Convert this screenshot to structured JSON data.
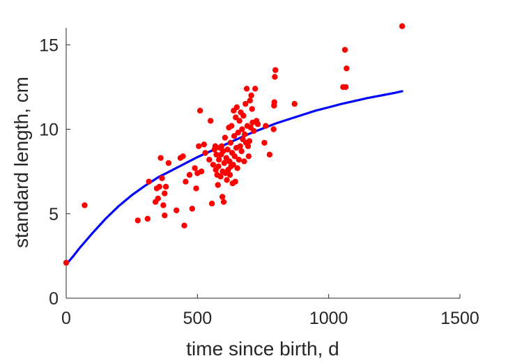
{
  "chart_data": {
    "type": "scatter",
    "xlabel": "time since birth, d",
    "ylabel": "standard length, cm",
    "xlim": [
      0,
      1500
    ],
    "ylim": [
      0,
      16
    ],
    "xticks": [
      0,
      500,
      1000,
      1500
    ],
    "yticks": [
      0,
      5,
      10,
      15
    ],
    "colors": {
      "points": "#ff0000",
      "curve": "#0000ff",
      "axes": "#262626"
    },
    "series": [
      {
        "kind": "points",
        "points": [
          [
            0,
            2.1
          ],
          [
            70,
            5.5
          ],
          [
            273,
            4.6
          ],
          [
            310,
            4.7
          ],
          [
            315,
            6.9
          ],
          [
            340,
            5.7
          ],
          [
            345,
            6.5
          ],
          [
            350,
            5.9
          ],
          [
            355,
            6.6
          ],
          [
            360,
            8.3
          ],
          [
            365,
            7.1
          ],
          [
            370,
            5.5
          ],
          [
            375,
            4.9
          ],
          [
            375,
            6.2
          ],
          [
            380,
            6.6
          ],
          [
            390,
            8.0
          ],
          [
            420,
            5.2
          ],
          [
            435,
            8.3
          ],
          [
            445,
            8.4
          ],
          [
            450,
            4.3
          ],
          [
            455,
            6.9
          ],
          [
            470,
            7.3
          ],
          [
            480,
            5.3
          ],
          [
            490,
            7.7
          ],
          [
            495,
            6.5
          ],
          [
            500,
            7.4
          ],
          [
            505,
            9.0
          ],
          [
            510,
            11.1
          ],
          [
            515,
            7.5
          ],
          [
            525,
            9.1
          ],
          [
            530,
            8.6
          ],
          [
            545,
            8.2
          ],
          [
            550,
            10.5
          ],
          [
            555,
            5.6
          ],
          [
            560,
            7.9
          ],
          [
            565,
            8.8
          ],
          [
            568,
            9.0
          ],
          [
            570,
            7.6
          ],
          [
            572,
            8.5
          ],
          [
            575,
            7.3
          ],
          [
            578,
            6.7
          ],
          [
            580,
            7.8
          ],
          [
            582,
            8.2
          ],
          [
            585,
            8.9
          ],
          [
            588,
            7.2
          ],
          [
            590,
            8.5
          ],
          [
            592,
            9.0
          ],
          [
            595,
            6.0
          ],
          [
            596,
            7.5
          ],
          [
            598,
            8.7
          ],
          [
            600,
            5.7
          ],
          [
            602,
            8.0
          ],
          [
            605,
            9.5
          ],
          [
            607,
            7.4
          ],
          [
            610,
            8.3
          ],
          [
            612,
            7.0
          ],
          [
            615,
            8.8
          ],
          [
            617,
            7.6
          ],
          [
            620,
            10.1
          ],
          [
            622,
            8.1
          ],
          [
            624,
            7.3
          ],
          [
            626,
            9.2
          ],
          [
            628,
            7.8
          ],
          [
            630,
            10.2
          ],
          [
            632,
            8.6
          ],
          [
            634,
            6.8
          ],
          [
            636,
            7.9
          ],
          [
            638,
            11.1
          ],
          [
            640,
            9.6
          ],
          [
            642,
            8.4
          ],
          [
            644,
            6.9
          ],
          [
            646,
            10.7
          ],
          [
            648,
            8.9
          ],
          [
            650,
            11.3
          ],
          [
            652,
            7.7
          ],
          [
            655,
            9.8
          ],
          [
            658,
            8.2
          ],
          [
            660,
            10.5
          ],
          [
            663,
            9.0
          ],
          [
            665,
            11.0
          ],
          [
            668,
            8.7
          ],
          [
            670,
            10.0
          ],
          [
            673,
            9.4
          ],
          [
            675,
            10.8
          ],
          [
            678,
            8.1
          ],
          [
            680,
            9.7
          ],
          [
            683,
            11.5
          ],
          [
            685,
            9.2
          ],
          [
            688,
            12.4
          ],
          [
            690,
            10.2
          ],
          [
            693,
            9.0
          ],
          [
            695,
            8.4
          ],
          [
            698,
            9.3
          ],
          [
            700,
            11.7
          ],
          [
            703,
            10.1
          ],
          [
            705,
            12.0
          ],
          [
            708,
            11.2
          ],
          [
            710,
            10.4
          ],
          [
            715,
            9.9
          ],
          [
            720,
            12.4
          ],
          [
            725,
            10.5
          ],
          [
            730,
            10.3
          ],
          [
            755,
            9.2
          ],
          [
            760,
            10.2
          ],
          [
            775,
            8.5
          ],
          [
            790,
            10.0
          ],
          [
            792,
            11.4
          ],
          [
            793,
            11.6
          ],
          [
            795,
            13.1
          ],
          [
            797,
            13.5
          ],
          [
            870,
            11.5
          ],
          [
            1055,
            12.5
          ],
          [
            1062,
            14.7
          ],
          [
            1065,
            12.5
          ],
          [
            1068,
            13.6
          ],
          [
            1280,
            16.1
          ]
        ]
      },
      {
        "kind": "curve",
        "points": [
          [
            0,
            2.0
          ],
          [
            25,
            2.45
          ],
          [
            50,
            2.95
          ],
          [
            100,
            3.85
          ],
          [
            150,
            4.7
          ],
          [
            200,
            5.45
          ],
          [
            250,
            6.1
          ],
          [
            300,
            6.65
          ],
          [
            350,
            7.15
          ],
          [
            400,
            7.55
          ],
          [
            450,
            7.95
          ],
          [
            500,
            8.35
          ],
          [
            550,
            8.7
          ],
          [
            600,
            9.05
          ],
          [
            650,
            9.4
          ],
          [
            700,
            9.75
          ],
          [
            750,
            10.05
          ],
          [
            800,
            10.35
          ],
          [
            850,
            10.6
          ],
          [
            900,
            10.85
          ],
          [
            950,
            11.1
          ],
          [
            1000,
            11.3
          ],
          [
            1050,
            11.5
          ],
          [
            1100,
            11.68
          ],
          [
            1150,
            11.85
          ],
          [
            1200,
            12.0
          ],
          [
            1250,
            12.15
          ],
          [
            1280,
            12.25
          ]
        ]
      }
    ]
  }
}
